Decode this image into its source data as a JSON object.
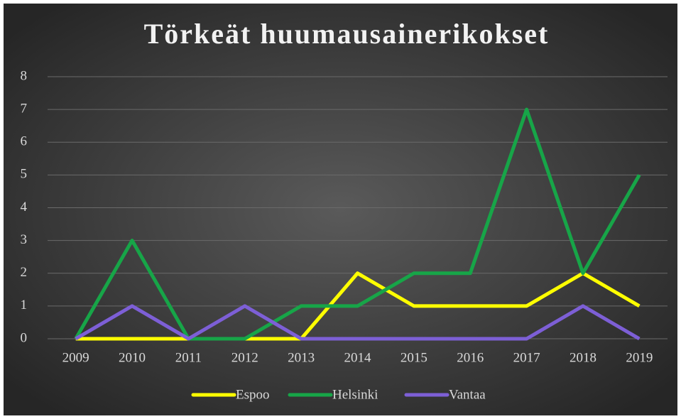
{
  "chart_data": {
    "type": "line",
    "title": "Törkeät huumausainerikokset",
    "categories": [
      "2009",
      "2010",
      "2011",
      "2012",
      "2013",
      "2014",
      "2015",
      "2016",
      "2017",
      "2018",
      "2019"
    ],
    "series": [
      {
        "name": "Espoo",
        "color": "#ffff00",
        "values": [
          0,
          0,
          0,
          0,
          0,
          2,
          1,
          1,
          1,
          2,
          1
        ]
      },
      {
        "name": "Helsinki",
        "color": "#17a548",
        "values": [
          0,
          3,
          0,
          0,
          1,
          1,
          2,
          2,
          7,
          2,
          5
        ]
      },
      {
        "name": "Vantaa",
        "color": "#7d5fd6",
        "values": [
          0,
          1,
          0,
          1,
          0,
          0,
          0,
          0,
          0,
          1,
          0
        ]
      }
    ],
    "ylim": [
      0,
      8
    ],
    "yticks": [
      0,
      1,
      2,
      3,
      4,
      5,
      6,
      7,
      8
    ],
    "grid": true,
    "legend": "bottom"
  }
}
